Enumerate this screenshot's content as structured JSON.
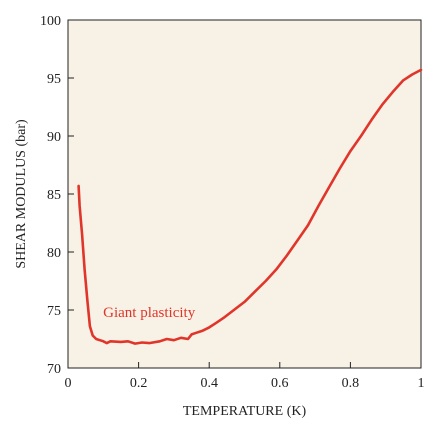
{
  "chart_data": {
    "type": "line",
    "xlabel": "TEMPERATURE (K)",
    "ylabel": "SHEAR MODULUS (bar)",
    "xlim": [
      0,
      1
    ],
    "ylim": [
      70,
      100
    ],
    "x_ticks": [
      0,
      0.2,
      0.4,
      0.6,
      0.8,
      1
    ],
    "x_tick_labels": [
      "0",
      "0.2",
      "0.4",
      "0.6",
      "0.8",
      "1"
    ],
    "y_ticks": [
      70,
      75,
      80,
      85,
      90,
      95,
      100
    ],
    "y_tick_labels": [
      "70",
      "75",
      "80",
      "85",
      "90",
      "95",
      "100"
    ],
    "grid": false,
    "plot_background": "#f8f2e6",
    "series": [
      {
        "color": "#e0352b",
        "points": [
          [
            0.03,
            85.7
          ],
          [
            0.033,
            84.0
          ],
          [
            0.04,
            81.5
          ],
          [
            0.047,
            78.5
          ],
          [
            0.055,
            75.8
          ],
          [
            0.062,
            73.6
          ],
          [
            0.07,
            72.8
          ],
          [
            0.08,
            72.5
          ],
          [
            0.09,
            72.4
          ],
          [
            0.1,
            72.3
          ],
          [
            0.11,
            72.15
          ],
          [
            0.12,
            72.3
          ],
          [
            0.15,
            72.25
          ],
          [
            0.17,
            72.3
          ],
          [
            0.19,
            72.1
          ],
          [
            0.21,
            72.2
          ],
          [
            0.23,
            72.15
          ],
          [
            0.26,
            72.3
          ],
          [
            0.28,
            72.5
          ],
          [
            0.3,
            72.4
          ],
          [
            0.32,
            72.6
          ],
          [
            0.34,
            72.5
          ],
          [
            0.35,
            72.9
          ],
          [
            0.36,
            73.0
          ],
          [
            0.38,
            73.2
          ],
          [
            0.4,
            73.5
          ],
          [
            0.42,
            73.9
          ],
          [
            0.44,
            74.3
          ],
          [
            0.47,
            75.0
          ],
          [
            0.5,
            75.7
          ],
          [
            0.53,
            76.6
          ],
          [
            0.56,
            77.5
          ],
          [
            0.59,
            78.5
          ],
          [
            0.62,
            79.7
          ],
          [
            0.65,
            81.0
          ],
          [
            0.68,
            82.3
          ],
          [
            0.71,
            84.0
          ],
          [
            0.74,
            85.6
          ],
          [
            0.77,
            87.2
          ],
          [
            0.8,
            88.7
          ],
          [
            0.83,
            90.0
          ],
          [
            0.86,
            91.4
          ],
          [
            0.89,
            92.7
          ],
          [
            0.92,
            93.8
          ],
          [
            0.95,
            94.8
          ],
          [
            0.975,
            95.3
          ],
          [
            1.0,
            95.7
          ]
        ]
      }
    ],
    "annotations": [
      {
        "text": "Giant plasticity",
        "x": 0.23,
        "y": 74.4,
        "color": "#e0352b"
      }
    ]
  }
}
